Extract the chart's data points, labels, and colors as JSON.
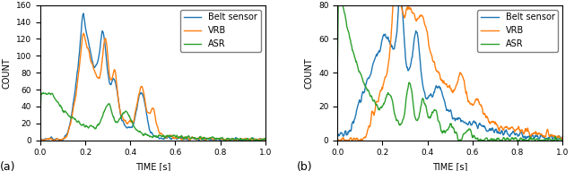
{
  "title_a": "(a)",
  "title_b": "(b)",
  "xlabel": "TIME [s]",
  "ylabel": "COUNT",
  "xlim": [
    0.0,
    1.0
  ],
  "ylim_a": [
    0,
    160
  ],
  "ylim_b": [
    0,
    80
  ],
  "yticks_a": [
    0,
    20,
    40,
    60,
    80,
    100,
    120,
    140,
    160
  ],
  "yticks_b": [
    0,
    20,
    40,
    60,
    80
  ],
  "xticks": [
    0.0,
    0.2,
    0.4,
    0.6,
    0.8,
    1.0
  ],
  "legend_labels": [
    "Belt sensor",
    "VRB",
    "ASR"
  ],
  "colors": [
    "#1f77b4",
    "#ff7f0e",
    "#2ca02c"
  ],
  "linewidth": 1.0,
  "legend_fontsize": 7,
  "axis_fontsize": 7,
  "tick_fontsize": 6.5
}
